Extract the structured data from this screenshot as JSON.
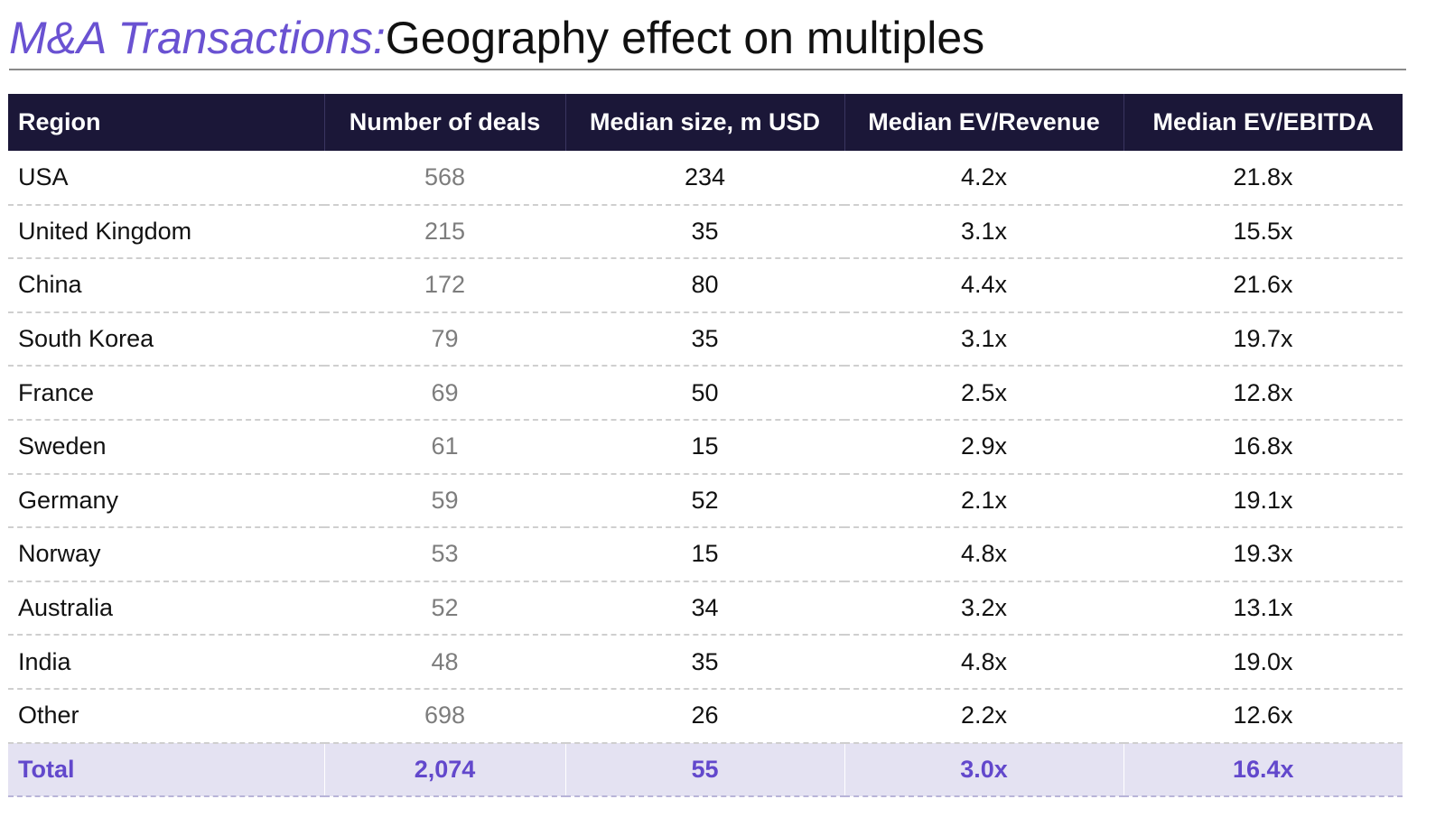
{
  "title": {
    "accent": "M&A Transactions:",
    "main": "Geography effect on multiples"
  },
  "colors": {
    "accent": "#6a52d2",
    "header_bg": "#1b1738",
    "total_bg": "#e4e2f2",
    "total_text": "#6248cc"
  },
  "table": {
    "headers": [
      "Region",
      "Number of deals",
      "Median size, m USD",
      "Median EV/Revenue",
      "Median EV/EBITDA"
    ],
    "rows": [
      [
        "USA",
        "568",
        "234",
        "4.2x",
        "21.8x"
      ],
      [
        "United Kingdom",
        "215",
        "35",
        "3.1x",
        "15.5x"
      ],
      [
        "China",
        "172",
        "80",
        "4.4x",
        "21.6x"
      ],
      [
        "South Korea",
        "79",
        "35",
        "3.1x",
        "19.7x"
      ],
      [
        "France",
        "69",
        "50",
        "2.5x",
        "12.8x"
      ],
      [
        "Sweden",
        "61",
        "15",
        "2.9x",
        "16.8x"
      ],
      [
        "Germany",
        "59",
        "52",
        "2.1x",
        "19.1x"
      ],
      [
        "Norway",
        "53",
        "15",
        "4.8x",
        "19.3x"
      ],
      [
        "Australia",
        "52",
        "34",
        "3.2x",
        "13.1x"
      ],
      [
        "India",
        "48",
        "35",
        "4.8x",
        "19.0x"
      ],
      [
        "Other",
        "698",
        "26",
        "2.2x",
        "12.6x"
      ]
    ],
    "total": [
      "Total",
      "2,074",
      "55",
      "3.0x",
      "16.4x"
    ]
  }
}
